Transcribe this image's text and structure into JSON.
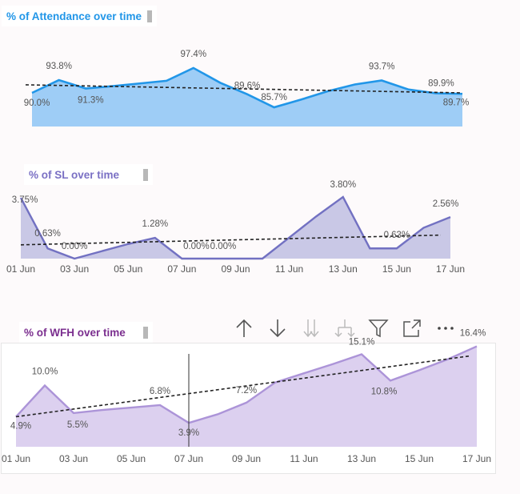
{
  "charts": {
    "attendance": {
      "title": "% of Attendance over time"
    },
    "sl": {
      "title": "% of SL over time"
    },
    "wfh": {
      "title": "% of WFH over time"
    }
  },
  "toolbar": {
    "icons": [
      "arrow-up-icon",
      "arrow-down-icon",
      "double-arrow-down-icon",
      "expand-hierarchy-icon",
      "filter-icon",
      "focus-mode-icon",
      "more-options-icon"
    ]
  },
  "colors": {
    "attendance_line": "#2196e8",
    "attendance_fill": "#9ecdf6",
    "sl_line": "#7271c2",
    "sl_fill": "#c9c8e6",
    "wfh_line": "#ac94d8",
    "wfh_fill": "#dcd0ef",
    "trend": "#222222"
  },
  "chart_data": [
    {
      "type": "area",
      "title": "% of Attendance over time",
      "x": [
        "01 Jun",
        "02 Jun",
        "03 Jun",
        "04 Jun",
        "05 Jun",
        "06 Jun",
        "07 Jun",
        "08 Jun",
        "09 Jun",
        "10 Jun",
        "11 Jun",
        "12 Jun",
        "13 Jun",
        "14 Jun",
        "15 Jun",
        "16 Jun",
        "17 Jun"
      ],
      "values": [
        90.0,
        93.8,
        91.3,
        92.0,
        92.8,
        93.6,
        97.4,
        93.0,
        89.6,
        85.7,
        88.0,
        90.5,
        92.5,
        93.7,
        91.0,
        89.9,
        89.7
      ],
      "labels": [
        {
          "x": "01 Jun",
          "text": "90.0%"
        },
        {
          "x": "02 Jun",
          "text": "93.8%"
        },
        {
          "x": "03 Jun",
          "text": "91.3%"
        },
        {
          "x": "07 Jun",
          "text": "97.4%"
        },
        {
          "x": "09 Jun",
          "text": "89.6%"
        },
        {
          "x": "10 Jun",
          "text": "85.7%"
        },
        {
          "x": "14 Jun",
          "text": "93.7%"
        },
        {
          "x": "16 Jun",
          "text": "89.9%"
        },
        {
          "x": "17 Jun",
          "text": "89.7%"
        }
      ],
      "trend": [
        92.4,
        90.0
      ],
      "ylim": [
        80,
        100
      ],
      "show_x_axis": false
    },
    {
      "type": "area",
      "title": "% of SL over time",
      "x": [
        "01 Jun",
        "02 Jun",
        "03 Jun",
        "04 Jun",
        "05 Jun",
        "06 Jun",
        "07 Jun",
        "08 Jun",
        "09 Jun",
        "10 Jun",
        "11 Jun",
        "12 Jun",
        "13 Jun",
        "14 Jun",
        "15 Jun",
        "16 Jun",
        "17 Jun"
      ],
      "values": [
        3.75,
        0.63,
        0.0,
        0.45,
        0.9,
        1.28,
        0.0,
        0.0,
        0.0,
        0.0,
        1.3,
        2.6,
        3.8,
        0.63,
        0.63,
        1.9,
        2.56
      ],
      "labels": [
        {
          "x": "01 Jun",
          "text": "3.75%"
        },
        {
          "x": "02 Jun",
          "text": "0.63%"
        },
        {
          "x": "03 Jun",
          "text": "0.00%"
        },
        {
          "x": "06 Jun",
          "text": "1.28%"
        },
        {
          "x": "07 Jun",
          "text": "0.00%"
        },
        {
          "x": "08 Jun",
          "text": "0.00%"
        },
        {
          "x": "13 Jun",
          "text": "3.80%"
        },
        {
          "x": "15 Jun",
          "text": "0.63%"
        },
        {
          "x": "17 Jun",
          "text": "2.56%"
        }
      ],
      "trend": [
        0.85,
        1.45
      ],
      "ylim": [
        0,
        4
      ],
      "xticks": [
        "01 Jun",
        "03 Jun",
        "05 Jun",
        "07 Jun",
        "09 Jun",
        "11 Jun",
        "13 Jun",
        "15 Jun",
        "17 Jun"
      ]
    },
    {
      "type": "area",
      "title": "% of WFH over time",
      "x": [
        "01 Jun",
        "02 Jun",
        "03 Jun",
        "04 Jun",
        "05 Jun",
        "06 Jun",
        "07 Jun",
        "08 Jun",
        "09 Jun",
        "10 Jun",
        "11 Jun",
        "12 Jun",
        "13 Jun",
        "14 Jun",
        "15 Jun",
        "16 Jun",
        "17 Jun"
      ],
      "values": [
        4.9,
        10.0,
        5.5,
        6.0,
        6.4,
        6.8,
        3.9,
        5.3,
        7.2,
        10.5,
        12.0,
        13.5,
        15.1,
        10.8,
        12.5,
        14.3,
        16.4
      ],
      "labels": [
        {
          "x": "01 Jun",
          "text": "4.9%"
        },
        {
          "x": "02 Jun",
          "text": "10.0%"
        },
        {
          "x": "03 Jun",
          "text": "5.5%"
        },
        {
          "x": "06 Jun",
          "text": "6.8%"
        },
        {
          "x": "07 Jun",
          "text": "3.9%"
        },
        {
          "x": "09 Jun",
          "text": "7.2%"
        },
        {
          "x": "13 Jun",
          "text": "15.1%"
        },
        {
          "x": "14 Jun",
          "text": "10.8%"
        },
        {
          "x": "17 Jun",
          "text": "16.4%"
        }
      ],
      "trend": [
        4.9,
        14.8
      ],
      "ylim": [
        0,
        20
      ],
      "cursor_x": "07 Jun",
      "xticks": [
        "01 Jun",
        "03 Jun",
        "05 Jun",
        "07 Jun",
        "09 Jun",
        "11 Jun",
        "13 Jun",
        "15 Jun",
        "17 Jun"
      ]
    }
  ]
}
